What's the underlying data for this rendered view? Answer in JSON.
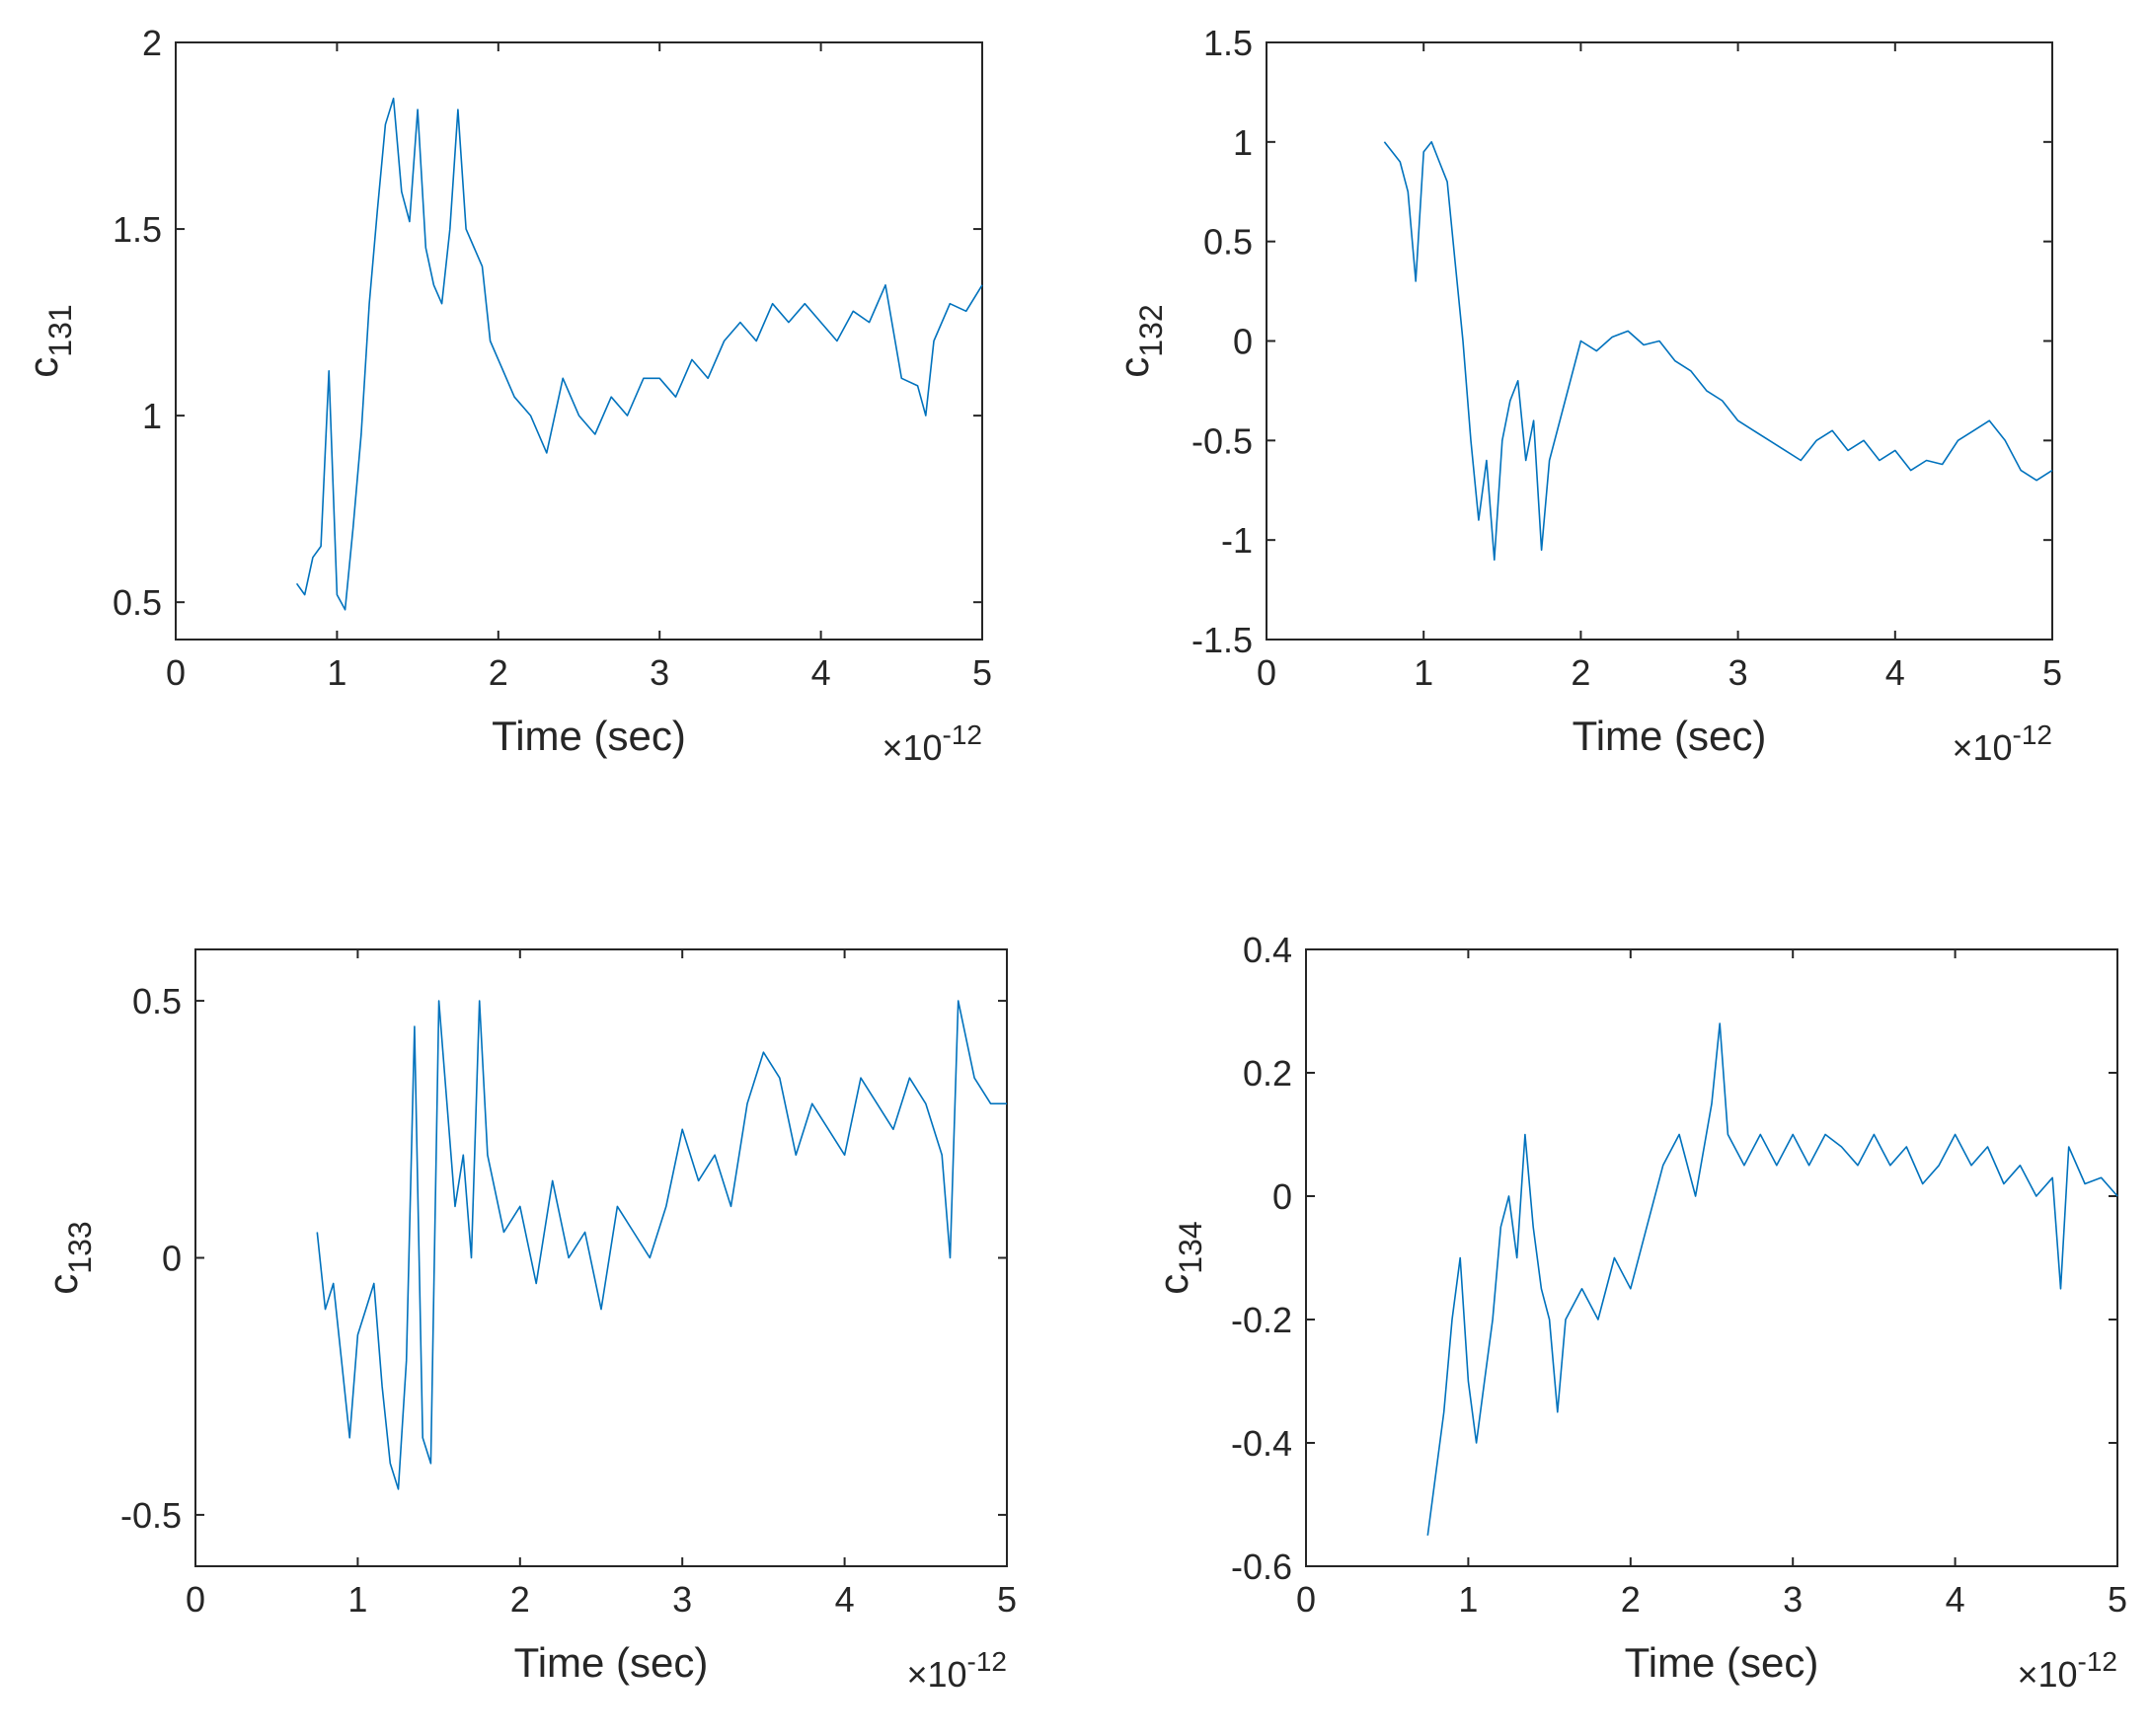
{
  "figure": {
    "layout": "2x2 grid",
    "line_color": "#0072BD",
    "axis_color": "#262626"
  },
  "chart_data": [
    {
      "type": "line",
      "title": "",
      "xlabel": "Time (sec)",
      "ylabel": "c",
      "ylabel_sub": "131",
      "x_exponent_prefix": "×10",
      "x_exponent": "-12",
      "xlim": [
        0,
        5
      ],
      "ylim": [
        0.4,
        2
      ],
      "xticks": [
        0,
        1,
        2,
        3,
        4,
        5
      ],
      "xtick_labels": [
        "0",
        "1",
        "2",
        "3",
        "4",
        "5"
      ],
      "yticks": [
        0.5,
        1,
        1.5,
        2
      ],
      "ytick_labels": [
        "0.5",
        "1",
        "1.5",
        "2"
      ],
      "grid": false,
      "series": [
        {
          "name": "c131",
          "x": [
            0.75,
            0.8,
            0.85,
            0.9,
            0.95,
            1.0,
            1.05,
            1.1,
            1.15,
            1.2,
            1.25,
            1.3,
            1.35,
            1.4,
            1.45,
            1.5,
            1.55,
            1.6,
            1.65,
            1.7,
            1.75,
            1.8,
            1.85,
            1.9,
            1.95,
            2.0,
            2.1,
            2.2,
            2.3,
            2.4,
            2.5,
            2.6,
            2.7,
            2.8,
            2.9,
            3.0,
            3.1,
            3.2,
            3.3,
            3.4,
            3.5,
            3.6,
            3.7,
            3.8,
            3.9,
            4.0,
            4.1,
            4.2,
            4.3,
            4.4,
            4.5,
            4.6,
            4.65,
            4.7,
            4.8,
            4.9,
            5.0
          ],
          "y": [
            0.55,
            0.52,
            0.62,
            0.65,
            1.12,
            0.52,
            0.48,
            0.7,
            0.95,
            1.3,
            1.55,
            1.78,
            1.85,
            1.6,
            1.52,
            1.82,
            1.45,
            1.35,
            1.3,
            1.5,
            1.82,
            1.5,
            1.45,
            1.4,
            1.2,
            1.15,
            1.05,
            1.0,
            0.9,
            1.1,
            1.0,
            0.95,
            1.05,
            1.0,
            1.1,
            1.1,
            1.05,
            1.15,
            1.1,
            1.2,
            1.25,
            1.2,
            1.3,
            1.25,
            1.3,
            1.25,
            1.2,
            1.28,
            1.25,
            1.35,
            1.1,
            1.08,
            1.0,
            1.2,
            1.3,
            1.28,
            1.35
          ]
        }
      ]
    },
    {
      "type": "line",
      "title": "",
      "xlabel": "Time (sec)",
      "ylabel": "c",
      "ylabel_sub": "132",
      "x_exponent_prefix": "×10",
      "x_exponent": "-12",
      "xlim": [
        0,
        5
      ],
      "ylim": [
        -1.5,
        1.5
      ],
      "xticks": [
        0,
        1,
        2,
        3,
        4,
        5
      ],
      "xtick_labels": [
        "0",
        "1",
        "2",
        "3",
        "4",
        "5"
      ],
      "yticks": [
        -1.5,
        -1,
        -0.5,
        0,
        0.5,
        1,
        1.5
      ],
      "ytick_labels": [
        "-1.5",
        "-1",
        "-0.5",
        "0",
        "0.5",
        "1",
        "1.5"
      ],
      "grid": false,
      "series": [
        {
          "name": "c132",
          "x": [
            0.75,
            0.8,
            0.85,
            0.9,
            0.95,
            1.0,
            1.05,
            1.1,
            1.15,
            1.2,
            1.25,
            1.3,
            1.35,
            1.4,
            1.45,
            1.5,
            1.55,
            1.6,
            1.65,
            1.7,
            1.75,
            1.8,
            1.9,
            2.0,
            2.1,
            2.2,
            2.3,
            2.4,
            2.5,
            2.6,
            2.7,
            2.8,
            2.9,
            3.0,
            3.1,
            3.2,
            3.3,
            3.4,
            3.5,
            3.6,
            3.7,
            3.8,
            3.9,
            4.0,
            4.1,
            4.2,
            4.3,
            4.4,
            4.5,
            4.6,
            4.7,
            4.8,
            4.9,
            5.0
          ],
          "y": [
            1.0,
            0.95,
            0.9,
            0.75,
            0.3,
            0.95,
            1.0,
            0.9,
            0.8,
            0.4,
            0.0,
            -0.5,
            -0.9,
            -0.6,
            -1.1,
            -0.5,
            -0.3,
            -0.2,
            -0.6,
            -0.4,
            -1.05,
            -0.6,
            -0.3,
            0.0,
            -0.05,
            0.02,
            0.05,
            -0.02,
            0.0,
            -0.1,
            -0.15,
            -0.25,
            -0.3,
            -0.4,
            -0.45,
            -0.5,
            -0.55,
            -0.6,
            -0.5,
            -0.45,
            -0.55,
            -0.5,
            -0.6,
            -0.55,
            -0.65,
            -0.6,
            -0.62,
            -0.5,
            -0.45,
            -0.4,
            -0.5,
            -0.65,
            -0.7,
            -0.65
          ]
        }
      ]
    },
    {
      "type": "line",
      "title": "",
      "xlabel": "Time (sec)",
      "ylabel": "c",
      "ylabel_sub": "133",
      "x_exponent_prefix": "×10",
      "x_exponent": "-12",
      "xlim": [
        0,
        5
      ],
      "ylim": [
        -0.6,
        0.6
      ],
      "xticks": [
        0,
        1,
        2,
        3,
        4,
        5
      ],
      "xtick_labels": [
        "0",
        "1",
        "2",
        "3",
        "4",
        "5"
      ],
      "yticks": [
        -0.5,
        0,
        0.5
      ],
      "ytick_labels": [
        "-0.5",
        "0",
        "0.5"
      ],
      "grid": false,
      "series": [
        {
          "name": "c133",
          "x": [
            0.75,
            0.8,
            0.85,
            0.9,
            0.95,
            1.0,
            1.05,
            1.1,
            1.15,
            1.2,
            1.25,
            1.3,
            1.35,
            1.4,
            1.45,
            1.5,
            1.55,
            1.6,
            1.65,
            1.7,
            1.75,
            1.8,
            1.9,
            2.0,
            2.1,
            2.2,
            2.3,
            2.4,
            2.5,
            2.6,
            2.7,
            2.8,
            2.9,
            3.0,
            3.1,
            3.2,
            3.3,
            3.4,
            3.5,
            3.6,
            3.7,
            3.8,
            3.9,
            4.0,
            4.1,
            4.2,
            4.3,
            4.4,
            4.5,
            4.6,
            4.65,
            4.7,
            4.8,
            4.9,
            5.0
          ],
          "y": [
            0.05,
            -0.1,
            -0.05,
            -0.2,
            -0.35,
            -0.15,
            -0.1,
            -0.05,
            -0.25,
            -0.4,
            -0.45,
            -0.2,
            0.45,
            -0.35,
            -0.4,
            0.5,
            0.3,
            0.1,
            0.2,
            0.0,
            0.5,
            0.2,
            0.05,
            0.1,
            -0.05,
            0.15,
            0.0,
            0.05,
            -0.1,
            0.1,
            0.05,
            0.0,
            0.1,
            0.25,
            0.15,
            0.2,
            0.1,
            0.3,
            0.4,
            0.35,
            0.2,
            0.3,
            0.25,
            0.2,
            0.35,
            0.3,
            0.25,
            0.35,
            0.3,
            0.2,
            0.0,
            0.5,
            0.35,
            0.3,
            0.3
          ]
        }
      ]
    },
    {
      "type": "line",
      "title": "",
      "xlabel": "Time (sec)",
      "ylabel": "c",
      "ylabel_sub": "134",
      "x_exponent_prefix": "×10",
      "x_exponent": "-12",
      "xlim": [
        0,
        5
      ],
      "ylim": [
        -0.6,
        0.4
      ],
      "xticks": [
        0,
        1,
        2,
        3,
        4,
        5
      ],
      "xtick_labels": [
        "0",
        "1",
        "2",
        "3",
        "4",
        "5"
      ],
      "yticks": [
        -0.6,
        -0.4,
        -0.2,
        0,
        0.2,
        0.4
      ],
      "ytick_labels": [
        "-0.6",
        "-0.4",
        "-0.2",
        "0",
        "0.2",
        "0.4"
      ],
      "grid": false,
      "series": [
        {
          "name": "c134",
          "x": [
            0.75,
            0.8,
            0.85,
            0.9,
            0.95,
            1.0,
            1.05,
            1.1,
            1.15,
            1.2,
            1.25,
            1.3,
            1.35,
            1.4,
            1.45,
            1.5,
            1.55,
            1.6,
            1.7,
            1.8,
            1.9,
            2.0,
            2.1,
            2.2,
            2.3,
            2.4,
            2.5,
            2.55,
            2.6,
            2.7,
            2.8,
            2.9,
            3.0,
            3.1,
            3.2,
            3.3,
            3.4,
            3.5,
            3.6,
            3.7,
            3.8,
            3.9,
            4.0,
            4.1,
            4.2,
            4.3,
            4.4,
            4.5,
            4.6,
            4.65,
            4.7,
            4.8,
            4.9,
            5.0
          ],
          "y": [
            -0.55,
            -0.45,
            -0.35,
            -0.2,
            -0.1,
            -0.3,
            -0.4,
            -0.3,
            -0.2,
            -0.05,
            0.0,
            -0.1,
            0.1,
            -0.05,
            -0.15,
            -0.2,
            -0.35,
            -0.2,
            -0.15,
            -0.2,
            -0.1,
            -0.15,
            -0.05,
            0.05,
            0.1,
            0.0,
            0.15,
            0.28,
            0.1,
            0.05,
            0.1,
            0.05,
            0.1,
            0.05,
            0.1,
            0.08,
            0.05,
            0.1,
            0.05,
            0.08,
            0.02,
            0.05,
            0.1,
            0.05,
            0.08,
            0.02,
            0.05,
            0.0,
            0.03,
            -0.15,
            0.08,
            0.02,
            0.03,
            0.0
          ]
        }
      ]
    }
  ]
}
